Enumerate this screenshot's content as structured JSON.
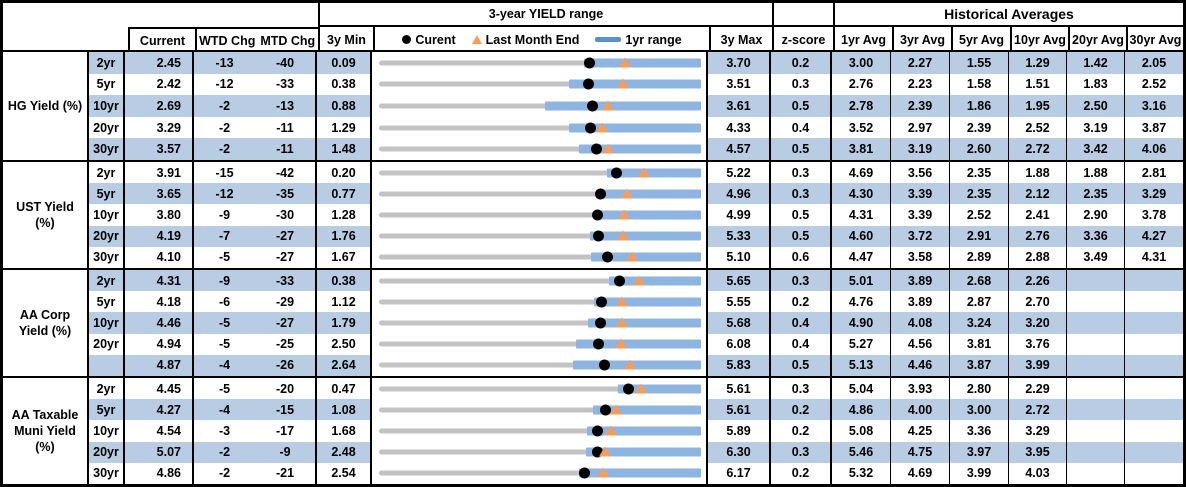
{
  "header": {
    "chart_title": "3-year YIELD range",
    "hist_avg_title": "Historical Averages",
    "col_current": "Current",
    "col_wtd": "WTD Chg",
    "col_mtd": "MTD Chg",
    "col_3y_min": "3y Min",
    "col_3y_max": "3y Max",
    "col_zscore": "z-score",
    "avg_cols": [
      "1yr Avg",
      "3yr Avg",
      "5yr Avg",
      "10yr Avg",
      "20yr Avg",
      "30yr Avg"
    ],
    "legend": {
      "current_label": "Curent",
      "last_month_end_label": "Last Month End",
      "range_label": "1yr range"
    }
  },
  "colors": {
    "row_shade": "#b8cce4",
    "range_bar_blue": "#8eb4e2",
    "legend_bar_blue": "#5b8fd0",
    "track_gray": "#c3c3c3",
    "last_month_end_orange": "#f79d57",
    "current_dot_black": "#000000"
  },
  "chart_data": {
    "type": "table+bullet-range",
    "note": "Each row is a bullet chart scaled from 3y Min to 3y Max; blue bar = estimated 1yr range, black dot = current, orange triangle = last month end.",
    "sections": [
      {
        "label": "HG Yield (%)",
        "rows": [
          {
            "tenor": "2yr",
            "current": "2.45",
            "wtd": "-13",
            "mtd": "-40",
            "min": "0.09",
            "max": "3.70",
            "z": "0.2",
            "lme": 2.85,
            "range_1yr": [
              2.39,
              3.7
            ],
            "avgs": [
              "3.00",
              "2.27",
              "1.55",
              "1.29",
              "1.42",
              "2.05"
            ]
          },
          {
            "tenor": "5yr",
            "current": "2.42",
            "wtd": "-12",
            "mtd": "-33",
            "min": "0.38",
            "max": "3.51",
            "z": "0.3",
            "lme": 2.75,
            "range_1yr": [
              2.23,
              3.51
            ],
            "avgs": [
              "2.76",
              "2.23",
              "1.58",
              "1.51",
              "1.83",
              "2.52"
            ]
          },
          {
            "tenor": "10yr",
            "current": "2.69",
            "wtd": "-2",
            "mtd": "-13",
            "min": "0.88",
            "max": "3.61",
            "z": "0.5",
            "lme": 2.82,
            "range_1yr": [
              2.29,
              3.61
            ],
            "avgs": [
              "2.78",
              "2.39",
              "1.86",
              "1.95",
              "2.50",
              "3.16"
            ]
          },
          {
            "tenor": "20yr",
            "current": "3.29",
            "wtd": "-2",
            "mtd": "-11",
            "min": "1.29",
            "max": "4.33",
            "z": "0.4",
            "lme": 3.4,
            "range_1yr": [
              3.08,
              4.33
            ],
            "avgs": [
              "3.52",
              "2.97",
              "2.39",
              "2.52",
              "3.19",
              "3.87"
            ]
          },
          {
            "tenor": "30yr",
            "current": "3.57",
            "wtd": "-2",
            "mtd": "-11",
            "min": "1.48",
            "max": "4.57",
            "z": "0.5",
            "lme": 3.68,
            "range_1yr": [
              3.4,
              4.57
            ],
            "avgs": [
              "3.81",
              "3.19",
              "2.60",
              "2.72",
              "3.42",
              "4.06"
            ]
          }
        ]
      },
      {
        "label": "UST Yield (%)",
        "rows": [
          {
            "tenor": "2yr",
            "current": "3.91",
            "wtd": "-15",
            "mtd": "-42",
            "min": "0.20",
            "max": "5.22",
            "z": "0.3",
            "lme": 4.33,
            "range_1yr": [
              3.76,
              5.22
            ],
            "avgs": [
              "4.69",
              "3.56",
              "2.35",
              "1.88",
              "1.88",
              "2.81"
            ]
          },
          {
            "tenor": "5yr",
            "current": "3.65",
            "wtd": "-12",
            "mtd": "-35",
            "min": "0.77",
            "max": "4.96",
            "z": "0.3",
            "lme": 4.0,
            "range_1yr": [
              3.59,
              4.96
            ],
            "avgs": [
              "4.30",
              "3.39",
              "2.35",
              "2.12",
              "2.35",
              "3.29"
            ]
          },
          {
            "tenor": "10yr",
            "current": "3.80",
            "wtd": "-9",
            "mtd": "-30",
            "min": "1.28",
            "max": "4.99",
            "z": "0.5",
            "lme": 4.1,
            "range_1yr": [
              3.77,
              4.99
            ],
            "avgs": [
              "4.31",
              "3.39",
              "2.52",
              "2.41",
              "2.90",
              "3.78"
            ]
          },
          {
            "tenor": "20yr",
            "current": "4.19",
            "wtd": "-7",
            "mtd": "-27",
            "min": "1.76",
            "max": "5.33",
            "z": "0.5",
            "lme": 4.46,
            "range_1yr": [
              4.1,
              5.33
            ],
            "avgs": [
              "4.60",
              "3.72",
              "2.91",
              "2.76",
              "3.36",
              "4.27"
            ]
          },
          {
            "tenor": "30yr",
            "current": "4.10",
            "wtd": "-5",
            "mtd": "-27",
            "min": "1.67",
            "max": "5.10",
            "z": "0.6",
            "lme": 4.37,
            "range_1yr": [
              3.93,
              5.1
            ],
            "avgs": [
              "4.47",
              "3.58",
              "2.89",
              "2.88",
              "3.49",
              "4.31"
            ]
          }
        ]
      },
      {
        "label": "AA Corp Yield (%)",
        "rows": [
          {
            "tenor": "2yr",
            "current": "4.31",
            "wtd": "-9",
            "mtd": "-33",
            "min": "0.38",
            "max": "5.65",
            "z": "0.3",
            "lme": 4.64,
            "range_1yr": [
              4.15,
              5.65
            ],
            "avgs": [
              "5.01",
              "3.89",
              "2.68",
              "2.26",
              "",
              ""
            ]
          },
          {
            "tenor": "5yr",
            "current": "4.18",
            "wtd": "-6",
            "mtd": "-29",
            "min": "1.12",
            "max": "5.55",
            "z": "0.2",
            "lme": 4.47,
            "range_1yr": [
              4.08,
              5.55
            ],
            "avgs": [
              "4.76",
              "3.89",
              "2.87",
              "2.70",
              "",
              ""
            ]
          },
          {
            "tenor": "10yr",
            "current": "4.46",
            "wtd": "-5",
            "mtd": "-27",
            "min": "1.79",
            "max": "5.68",
            "z": "0.4",
            "lme": 4.73,
            "range_1yr": [
              4.31,
              5.68
            ],
            "avgs": [
              "4.90",
              "4.08",
              "3.24",
              "3.20",
              "",
              ""
            ]
          },
          {
            "tenor": "20yr",
            "current": "4.94",
            "wtd": "-5",
            "mtd": "-25",
            "min": "2.50",
            "max": "6.08",
            "z": "0.4",
            "lme": 5.19,
            "range_1yr": [
              4.69,
              6.08
            ],
            "avgs": [
              "5.27",
              "4.56",
              "3.81",
              "3.76",
              "",
              ""
            ]
          },
          {
            "tenor": "",
            "current": "4.87",
            "wtd": "-4",
            "mtd": "-26",
            "min": "2.64",
            "max": "5.83",
            "z": "0.5",
            "lme": 5.13,
            "range_1yr": [
              4.56,
              5.83
            ],
            "avgs": [
              "5.13",
              "4.46",
              "3.87",
              "3.99",
              "",
              ""
            ]
          }
        ]
      },
      {
        "label": "AA Taxable Muni Yield (%)",
        "rows": [
          {
            "tenor": "2yr",
            "current": "4.45",
            "wtd": "-5",
            "mtd": "-20",
            "min": "0.47",
            "max": "5.61",
            "z": "0.3",
            "lme": 4.65,
            "range_1yr": [
              4.29,
              5.61
            ],
            "avgs": [
              "5.04",
              "3.93",
              "2.80",
              "2.29",
              "",
              ""
            ]
          },
          {
            "tenor": "5yr",
            "current": "4.27",
            "wtd": "-4",
            "mtd": "-15",
            "min": "1.08",
            "max": "5.61",
            "z": "0.2",
            "lme": 4.42,
            "range_1yr": [
              4.09,
              5.61
            ],
            "avgs": [
              "4.86",
              "4.00",
              "3.00",
              "2.72",
              "",
              ""
            ]
          },
          {
            "tenor": "10yr",
            "current": "4.54",
            "wtd": "-3",
            "mtd": "-17",
            "min": "1.68",
            "max": "5.89",
            "z": "0.2",
            "lme": 4.71,
            "range_1yr": [
              4.4,
              5.89
            ],
            "avgs": [
              "5.08",
              "4.25",
              "3.36",
              "3.29",
              "",
              ""
            ]
          },
          {
            "tenor": "20yr",
            "current": "5.07",
            "wtd": "-2",
            "mtd": "-9",
            "min": "2.48",
            "max": "6.30",
            "z": "0.3",
            "lme": 5.16,
            "range_1yr": [
              4.93,
              6.3
            ],
            "avgs": [
              "5.46",
              "4.75",
              "3.97",
              "3.95",
              "",
              ""
            ]
          },
          {
            "tenor": "30yr",
            "current": "4.86",
            "wtd": "-2",
            "mtd": "-21",
            "min": "2.54",
            "max": "6.17",
            "z": "0.2",
            "lme": 5.07,
            "range_1yr": [
              4.79,
              6.17
            ],
            "avgs": [
              "5.32",
              "4.69",
              "3.99",
              "4.03",
              "",
              ""
            ]
          }
        ]
      }
    ]
  }
}
